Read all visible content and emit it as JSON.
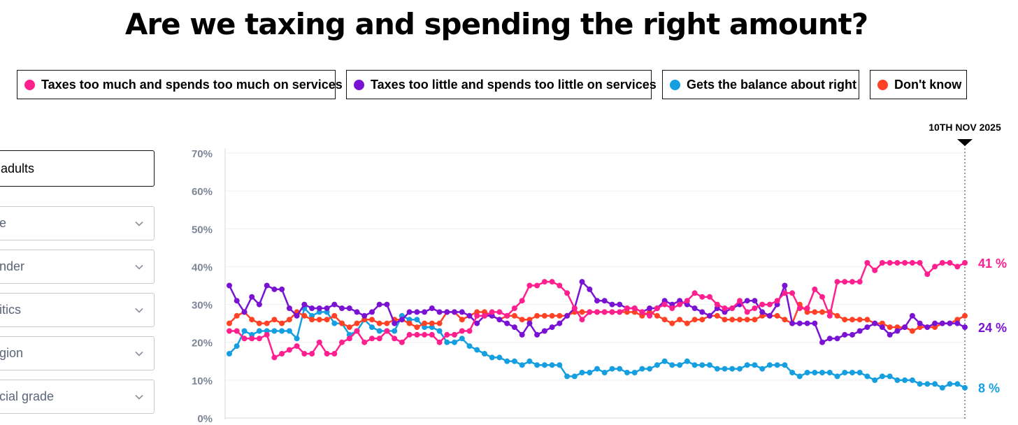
{
  "header": {
    "title": "Are we taxing and spending the right amount?"
  },
  "legend": [
    {
      "label": "Taxes too much and spends too much on services",
      "color": "#ff1f8e"
    },
    {
      "label": "Taxes too little and spends too little on services",
      "color": "#7a12d4"
    },
    {
      "label": "Gets the balance about right",
      "color": "#159fe0"
    },
    {
      "label": "Don't know",
      "color": "#ff4126"
    }
  ],
  "filters": {
    "selected": "adults",
    "items": [
      "e",
      "nder",
      "itics",
      "gion",
      "cial grade"
    ]
  },
  "chart_data": {
    "type": "line",
    "title": "Are we taxing and spending the right amount?",
    "ylim": [
      0,
      70
    ],
    "yticks": [
      "0%",
      "10%",
      "20%",
      "30%",
      "40%",
      "50%",
      "60%",
      "70%"
    ],
    "marker_label": "10TH NOV 2025",
    "end_labels": [
      "41 %",
      "24 %",
      "8 %"
    ],
    "series": [
      {
        "name": "Taxes too much and spends too much on services",
        "color": "#ff1f8e",
        "values": [
          23,
          23,
          21,
          21,
          21,
          22,
          16,
          17,
          18,
          19,
          17,
          17,
          20,
          17,
          17,
          20,
          21,
          23,
          20,
          21,
          21,
          23,
          21,
          20,
          22,
          22,
          22,
          22,
          20,
          22,
          22,
          23,
          23,
          27,
          27,
          28,
          28,
          27,
          29,
          31,
          35,
          35,
          36,
          36,
          35,
          33,
          29,
          26,
          28,
          28,
          28,
          28,
          28,
          29,
          29,
          28,
          27,
          29,
          30,
          29,
          30,
          31,
          33,
          32,
          32,
          30,
          29,
          29,
          31,
          28,
          29,
          30,
          30,
          31,
          33,
          33,
          29,
          29,
          34,
          32,
          27,
          36,
          36,
          36,
          36,
          41,
          39,
          41,
          41,
          41,
          41,
          41,
          41,
          38,
          40,
          41,
          41,
          40,
          41
        ]
      },
      {
        "name": "Taxes too little and spends too little on services",
        "color": "#7a12d4",
        "values": [
          35,
          31,
          28,
          32,
          30,
          35,
          34,
          34,
          29,
          27,
          30,
          29,
          29,
          29,
          30,
          29,
          29,
          28,
          27,
          28,
          30,
          30,
          25,
          26,
          28,
          28,
          28,
          29,
          28,
          28,
          28,
          28,
          27,
          25,
          27,
          27,
          26,
          25,
          24,
          22,
          25,
          22,
          23,
          24,
          25,
          27,
          29,
          36,
          34,
          31,
          31,
          30,
          30,
          29,
          29,
          28,
          29,
          29,
          31,
          30,
          31,
          30,
          29,
          28,
          27,
          29,
          28,
          29,
          30,
          31,
          31,
          28,
          27,
          30,
          35,
          25,
          25,
          25,
          25,
          20,
          21,
          21,
          22,
          22,
          23,
          24,
          25,
          24,
          22,
          23,
          24,
          27,
          25,
          24,
          25,
          25,
          25,
          25,
          24
        ]
      },
      {
        "name": "Gets the balance about right",
        "color": "#159fe0",
        "values": [
          17,
          19,
          23,
          22,
          23,
          23,
          23,
          23,
          23,
          21,
          29,
          27,
          28,
          28,
          25,
          25,
          22,
          23,
          26,
          24,
          23,
          23,
          23,
          27,
          26,
          26,
          24,
          24,
          23,
          20,
          20,
          21,
          19,
          18,
          17,
          16,
          16,
          15,
          15,
          14,
          15,
          14,
          14,
          14,
          14,
          11,
          11,
          12,
          12,
          13,
          12,
          13,
          13,
          12,
          12,
          13,
          13,
          14,
          15,
          14,
          14,
          15,
          14,
          14,
          14,
          13,
          13,
          13,
          13,
          14,
          14,
          13,
          14,
          14,
          14,
          12,
          11,
          12,
          12,
          12,
          12,
          11,
          12,
          12,
          12,
          11,
          10,
          11,
          11,
          10,
          10,
          10,
          9,
          9,
          9,
          8,
          9,
          9,
          8
        ]
      },
      {
        "name": "Don't know",
        "color": "#ff4126",
        "values": [
          25,
          27,
          28,
          26,
          25,
          25,
          26,
          25,
          26,
          28,
          27,
          26,
          26,
          26,
          27,
          25,
          24,
          25,
          26,
          26,
          25,
          25,
          26,
          26,
          25,
          24,
          25,
          25,
          25,
          28,
          28,
          26,
          27,
          28,
          28,
          27,
          26,
          27,
          27,
          26,
          26,
          27,
          27,
          27,
          27,
          27,
          28,
          28,
          28,
          28,
          28,
          28,
          28,
          28,
          28,
          27,
          28,
          27,
          26,
          25,
          26,
          25,
          26,
          26,
          27,
          27,
          26,
          26,
          26,
          26,
          26,
          27,
          27,
          27,
          26,
          25,
          30,
          28,
          28,
          28,
          28,
          27,
          26,
          26,
          26,
          26,
          25,
          25,
          24,
          24,
          24,
          23,
          24,
          24,
          24,
          25,
          25,
          26,
          27
        ]
      }
    ]
  }
}
